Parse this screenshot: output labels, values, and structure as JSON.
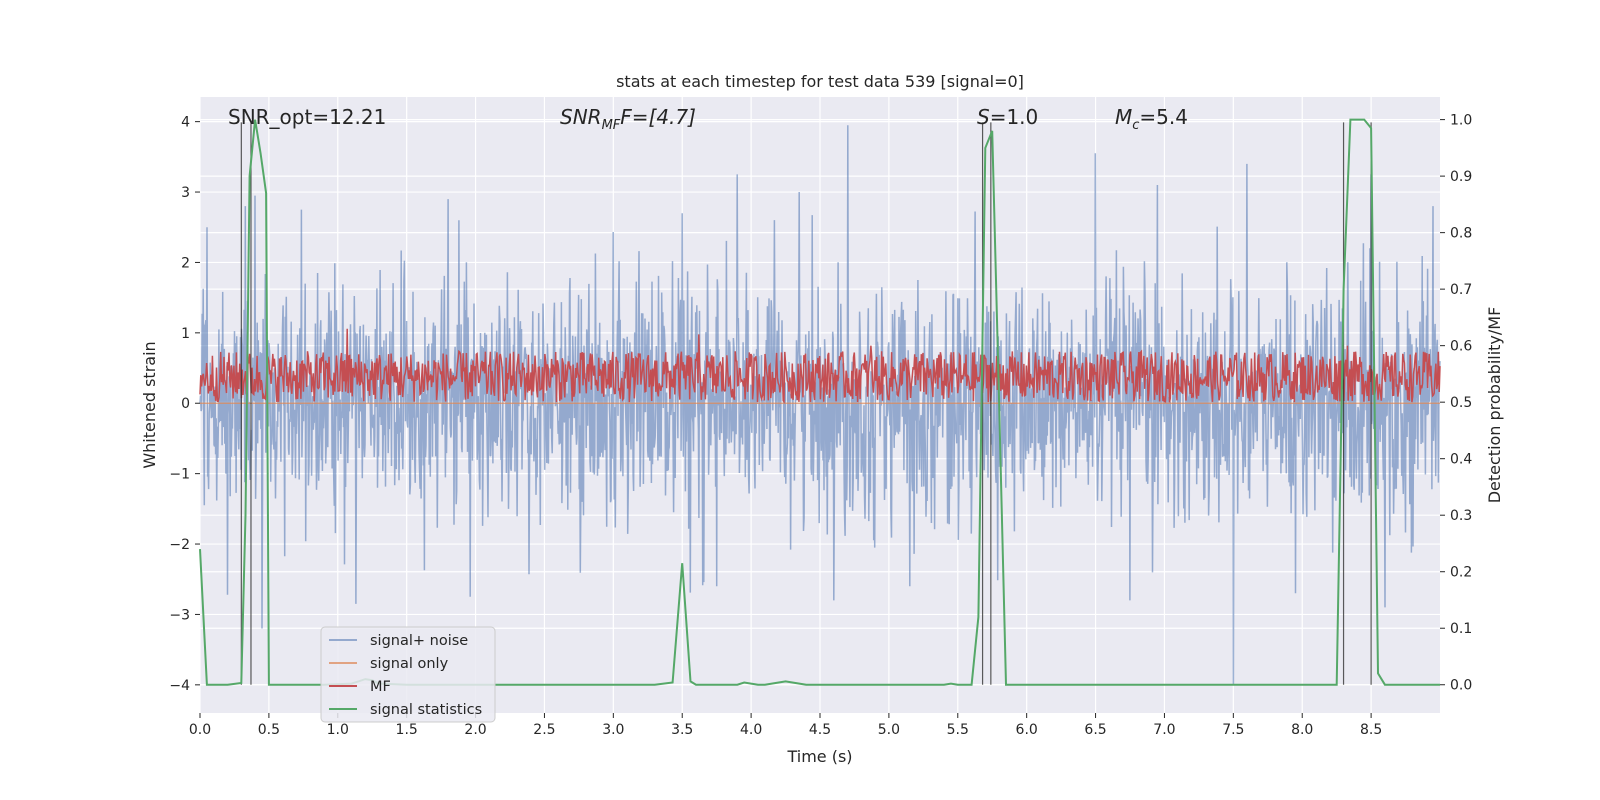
{
  "chart_data": {
    "type": "line",
    "title": "stats at each timestep for test data 539 [signal=0]",
    "xlabel": "Time (s)",
    "ylabel": "Whitened strain",
    "y2label": "Detection probability/MF",
    "xlim": [
      0.0,
      9.0
    ],
    "ylim": [
      -4.4,
      4.35
    ],
    "y2lim": [
      -0.05,
      1.04
    ],
    "x_ticks": [
      0.0,
      0.5,
      1.0,
      1.5,
      2.0,
      2.5,
      3.0,
      3.5,
      4.0,
      4.5,
      5.0,
      5.5,
      6.0,
      6.5,
      7.0,
      7.5,
      8.0,
      8.5
    ],
    "x_tick_labels": [
      "0.0",
      "0.5",
      "1.0",
      "1.5",
      "2.0",
      "2.5",
      "3.0",
      "3.5",
      "4.0",
      "4.5",
      "5.0",
      "5.5",
      "6.0",
      "6.5",
      "7.0",
      "7.5",
      "8.0",
      "8.5"
    ],
    "y_ticks": [
      4,
      3,
      2,
      1,
      0,
      -1,
      -2,
      -3,
      -4
    ],
    "y_tick_labels": [
      "4",
      "3",
      "2",
      "1",
      "0",
      "−1",
      "−2",
      "−3",
      "−4"
    ],
    "y2_ticks": [
      1.0,
      0.9,
      0.8,
      0.7,
      0.6,
      0.5,
      0.4,
      0.3,
      0.2,
      0.1,
      0.0
    ],
    "y2_tick_labels": [
      "1.0",
      "0.9",
      "0.8",
      "0.7",
      "0.6",
      "0.5",
      "0.4",
      "0.3",
      "0.2",
      "0.1",
      "0.0"
    ],
    "grid": true,
    "legend_position": "lower-left",
    "annotations": {
      "snr_opt": "SNR_opt=12.21",
      "snr_mf_main": "SNR",
      "snr_mf_sub": "MF",
      "snr_mf_rest": "F=[4.7]",
      "s_main": "S",
      "s_rest": "=1.0",
      "mc_main": "M",
      "mc_sub": "c",
      "mc_rest": "=5.4"
    },
    "series": [
      {
        "name": "signal+ noise",
        "color": "#4c72b0",
        "axis": "left",
        "style": "noise",
        "sigma": 0.8,
        "n_samples": 2300,
        "peaks": [
          [
            0.05,
            2.5
          ],
          [
            0.33,
            2.8
          ],
          [
            0.4,
            2.95
          ],
          [
            0.45,
            -3.2
          ],
          [
            1.13,
            -2.85
          ],
          [
            1.8,
            2.9
          ],
          [
            1.88,
            2.6
          ],
          [
            3.5,
            2.7
          ],
          [
            3.75,
            -2.6
          ],
          [
            3.9,
            3.25
          ],
          [
            4.35,
            3.0
          ],
          [
            4.6,
            -2.8
          ],
          [
            4.7,
            3.95
          ],
          [
            5.15,
            -2.6
          ],
          [
            6.5,
            3.55
          ],
          [
            6.75,
            -2.8
          ],
          [
            6.95,
            3.1
          ],
          [
            7.5,
            -4.0
          ],
          [
            7.6,
            3.4
          ],
          [
            7.95,
            -2.7
          ],
          [
            8.5,
            3.25
          ],
          [
            8.6,
            -2.9
          ],
          [
            8.95,
            2.8
          ]
        ]
      },
      {
        "name": "signal only",
        "color": "#dd8452",
        "axis": "left",
        "style": "flat",
        "value": 0.0
      },
      {
        "name": "MF",
        "color": "#c44e52",
        "axis": "right",
        "style": "mf",
        "base": 0.545,
        "amplitude": 0.045,
        "n_samples": 1500,
        "spikes": [
          [
            1.07,
            0.63
          ],
          [
            3.62,
            0.62
          ],
          [
            8.33,
            0.6
          ],
          [
            4.87,
            0.6
          ]
        ]
      },
      {
        "name": "signal statistics",
        "color": "#55a868",
        "axis": "right",
        "style": "polyline",
        "x": [
          0.0,
          0.05,
          0.1,
          0.2,
          0.3,
          0.33,
          0.36,
          0.4,
          0.44,
          0.48,
          0.5,
          0.6,
          0.9,
          1.1,
          1.15,
          1.2,
          1.25,
          1.3,
          1.5,
          2.0,
          2.5,
          3.0,
          3.3,
          3.43,
          3.5,
          3.56,
          3.6,
          3.68,
          3.8,
          3.9,
          3.95,
          4.05,
          4.1,
          4.2,
          4.25,
          4.3,
          4.4,
          4.5,
          5.0,
          5.4,
          5.45,
          5.5,
          5.6,
          5.65,
          5.7,
          5.75,
          5.8,
          5.85,
          5.9,
          6.0,
          6.5,
          7.0,
          7.5,
          8.0,
          8.25,
          8.3,
          8.35,
          8.4,
          8.45,
          8.5,
          8.55,
          8.6,
          8.7,
          9.0
        ],
        "y": [
          0.24,
          0.0,
          0.0,
          0.0,
          0.003,
          0.3,
          0.9,
          1.0,
          0.94,
          0.87,
          0.0,
          0.0,
          0.0,
          0.002,
          0.006,
          0.01,
          0.008,
          0.002,
          0.0,
          0.0,
          0.0,
          0.0,
          0.0,
          0.004,
          0.215,
          0.006,
          0.0,
          0.0,
          0.0,
          0.0,
          0.004,
          0.0,
          0.0,
          0.004,
          0.006,
          0.004,
          0.0,
          0.0,
          0.0,
          0.0,
          0.002,
          0.0,
          0.0,
          0.12,
          0.95,
          0.98,
          0.5,
          0.0,
          0.0,
          0.0,
          0.0,
          0.0,
          0.0,
          0.0,
          0.0,
          0.7,
          1.0,
          1.0,
          1.0,
          0.985,
          0.02,
          0.0,
          0.0,
          0.0
        ]
      }
    ],
    "vertical_markers": [
      0.3,
      0.37,
      5.68,
      5.74,
      8.3,
      8.5
    ]
  }
}
